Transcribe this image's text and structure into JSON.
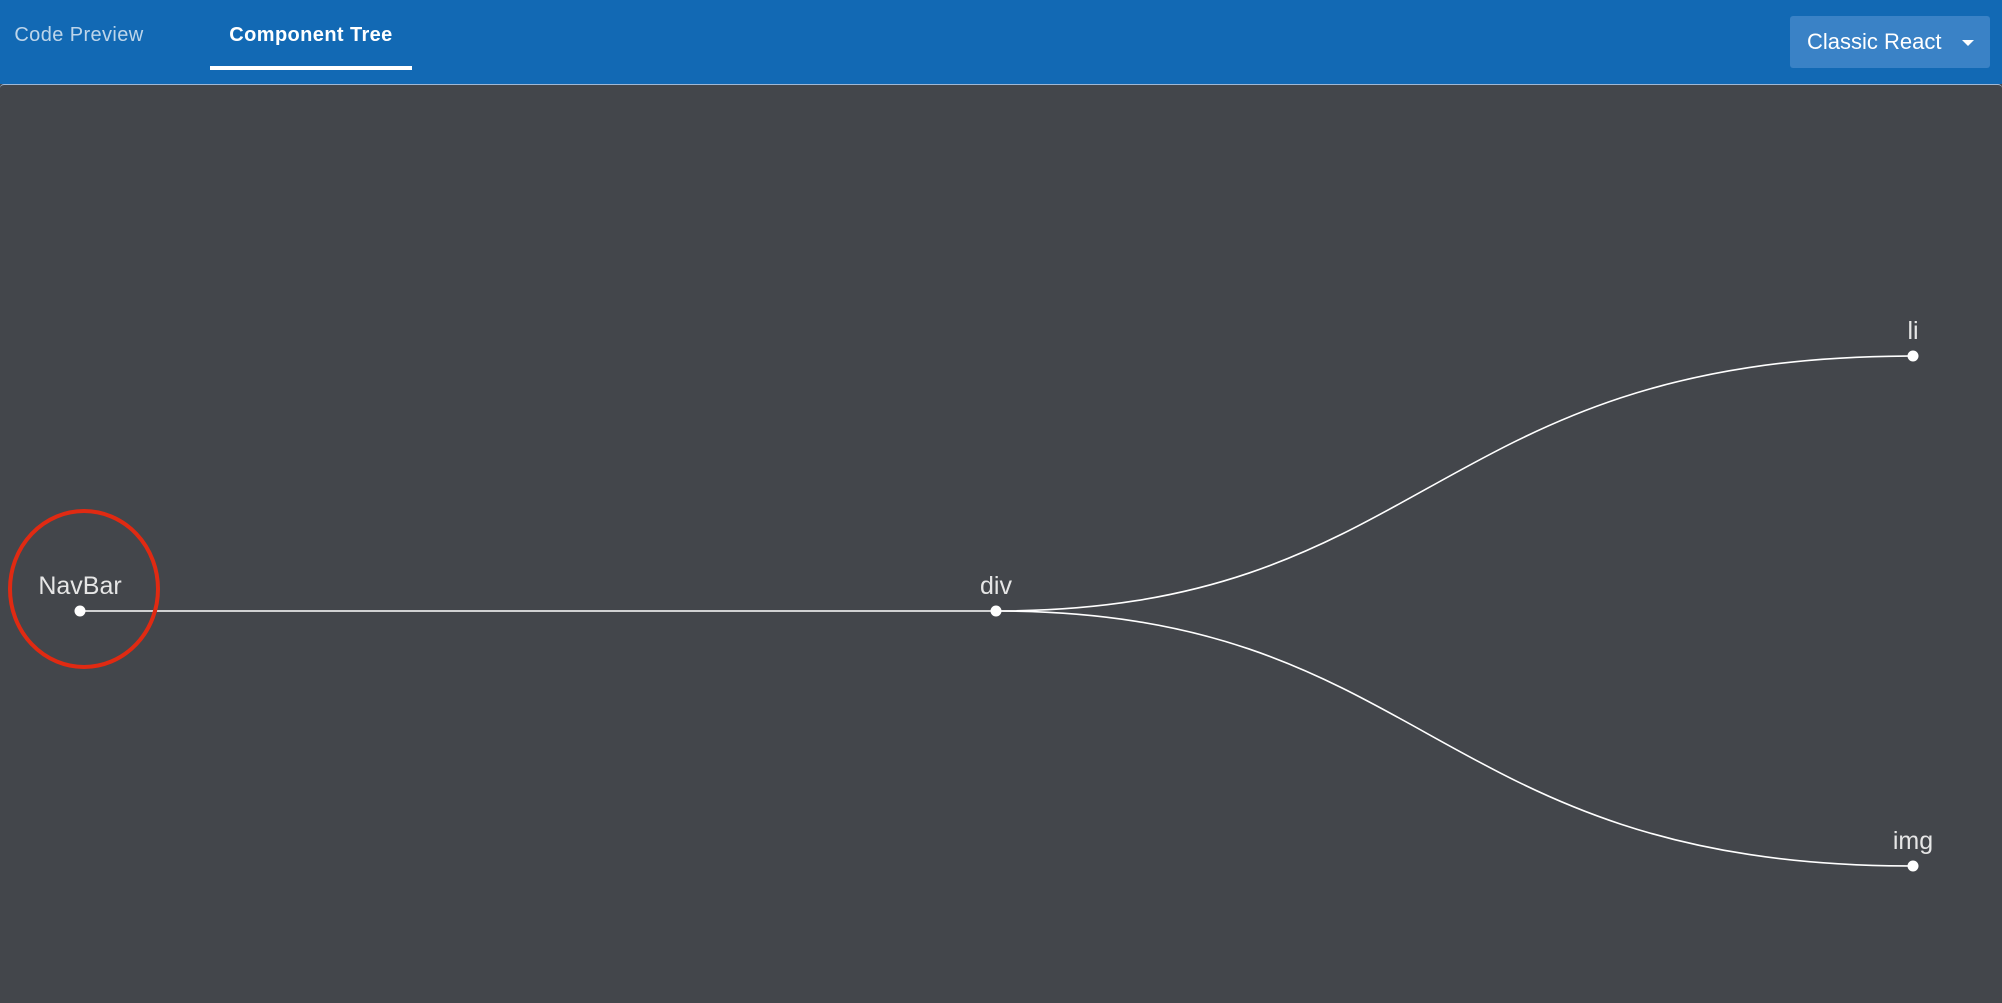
{
  "tabs": [
    {
      "label": "Code Preview",
      "active": false
    },
    {
      "label": "Component Tree",
      "active": true
    }
  ],
  "select": {
    "value": "Classic React"
  },
  "tree": {
    "nodes": {
      "root": "NavBar",
      "child": "div",
      "leaf_top": "li",
      "leaf_bottom": "img"
    }
  },
  "colors": {
    "header": "#1269b4",
    "canvas": "#43464b",
    "link": "#ffffff",
    "highlight": "#e02a12"
  }
}
